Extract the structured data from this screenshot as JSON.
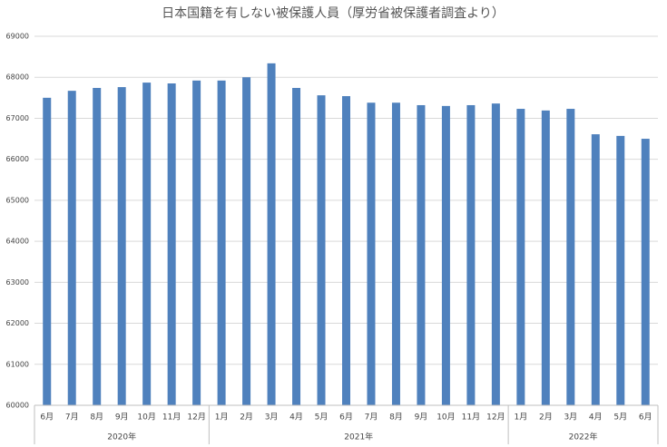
{
  "chart_data": {
    "type": "bar",
    "title": "日本国籍を有しない被保護人員（厚労省被保護者調査より）",
    "categories": [
      "6月",
      "7月",
      "8月",
      "9月",
      "10月",
      "11月",
      "12月",
      "1月",
      "2月",
      "3月",
      "4月",
      "5月",
      "6月",
      "7月",
      "8月",
      "9月",
      "10月",
      "11月",
      "12月",
      "1月",
      "2月",
      "3月",
      "4月",
      "5月",
      "6月"
    ],
    "groups": [
      {
        "label": "2020年",
        "size": 7
      },
      {
        "label": "2021年",
        "size": 12
      },
      {
        "label": "2022年",
        "size": 6
      }
    ],
    "values": [
      67500,
      67670,
      67740,
      67760,
      67870,
      67850,
      67920,
      67920,
      68000,
      68340,
      67740,
      67560,
      67540,
      67380,
      67380,
      67320,
      67300,
      67320,
      67360,
      67230,
      67190,
      67230,
      66610,
      66570,
      66500
    ],
    "color": "#4f81bd",
    "ylim": [
      60000,
      69000
    ],
    "yticks": [
      60000,
      61000,
      62000,
      63000,
      64000,
      65000,
      66000,
      67000,
      68000,
      69000
    ],
    "grid": true
  }
}
